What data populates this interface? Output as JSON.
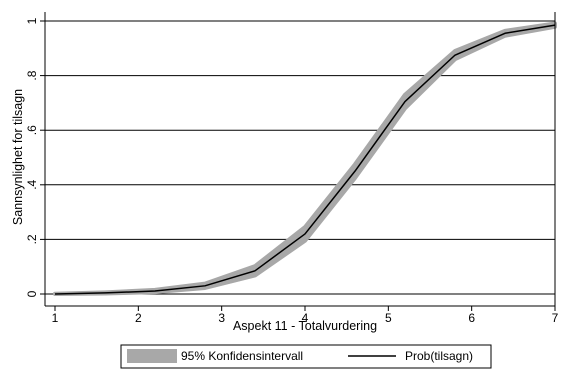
{
  "chart_data": {
    "type": "line",
    "xlabel": "Aspekt 11 - Totalvurdering",
    "ylabel": "Sannsynlighet for tilsagn",
    "xlim": [
      1,
      7
    ],
    "ylim": [
      0,
      1
    ],
    "x_ticks": [
      "1",
      "2",
      "3",
      "4",
      "5",
      "6",
      "7"
    ],
    "y_ticks": [
      "0",
      ".2",
      ".4",
      ".6",
      ".8",
      "1"
    ],
    "grid": "horizontal",
    "legend_position": "bottom",
    "series": [
      {
        "name": "Prob(tilsagn)",
        "kind": "line",
        "color": "#000000",
        "x": [
          1,
          1.6,
          2.2,
          2.8,
          3.4,
          4.0,
          4.6,
          5.2,
          5.8,
          6.4,
          7.0
        ],
        "y": [
          0.0,
          0.004,
          0.011,
          0.03,
          0.085,
          0.22,
          0.45,
          0.705,
          0.875,
          0.955,
          0.985
        ]
      },
      {
        "name": "95% Konfidensintervall",
        "kind": "band",
        "color": "#a8a8a8",
        "x": [
          1,
          1.6,
          2.2,
          2.8,
          3.4,
          4.0,
          4.6,
          5.2,
          5.8,
          6.4,
          7.0
        ],
        "lower": [
          0.0,
          0.002,
          0.007,
          0.022,
          0.068,
          0.195,
          0.425,
          0.68,
          0.86,
          0.946,
          0.979
        ],
        "upper": [
          0.001,
          0.006,
          0.015,
          0.038,
          0.102,
          0.245,
          0.475,
          0.73,
          0.89,
          0.964,
          0.991
        ]
      }
    ]
  }
}
